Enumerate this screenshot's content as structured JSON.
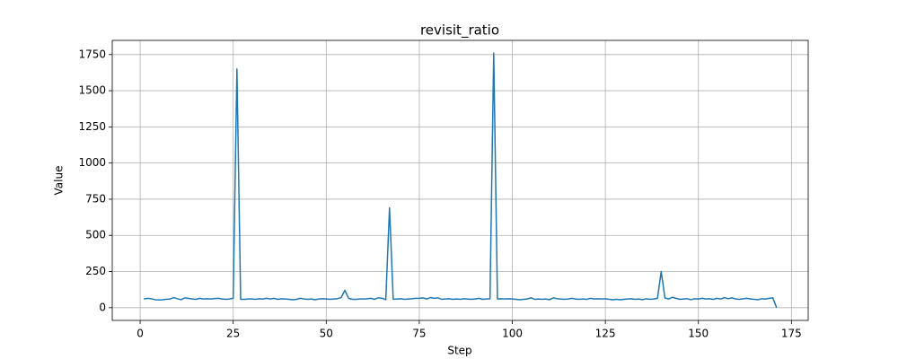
{
  "chart_data": {
    "type": "line",
    "title": "revisit_ratio",
    "xlabel": "Step",
    "ylabel": "Value",
    "x": [
      1,
      2,
      3,
      4,
      5,
      6,
      7,
      8,
      9,
      10,
      11,
      12,
      13,
      14,
      15,
      16,
      17,
      18,
      19,
      20,
      21,
      22,
      23,
      24,
      25,
      26,
      27,
      28,
      29,
      30,
      31,
      32,
      33,
      34,
      35,
      36,
      37,
      38,
      39,
      40,
      41,
      42,
      43,
      44,
      45,
      46,
      47,
      48,
      49,
      50,
      51,
      52,
      53,
      54,
      55,
      56,
      57,
      58,
      59,
      60,
      61,
      62,
      63,
      64,
      65,
      66,
      67,
      68,
      69,
      70,
      71,
      72,
      73,
      74,
      75,
      76,
      77,
      78,
      79,
      80,
      81,
      82,
      83,
      84,
      85,
      86,
      87,
      88,
      89,
      90,
      91,
      92,
      93,
      94,
      95,
      96,
      97,
      98,
      99,
      100,
      101,
      102,
      103,
      104,
      105,
      106,
      107,
      108,
      109,
      110,
      111,
      112,
      113,
      114,
      115,
      116,
      117,
      118,
      119,
      120,
      121,
      122,
      123,
      124,
      125,
      126,
      127,
      128,
      129,
      130,
      131,
      132,
      133,
      134,
      135,
      136,
      137,
      138,
      139,
      140,
      141,
      142,
      143,
      144,
      145,
      146,
      147,
      148,
      149,
      150,
      151,
      152,
      153,
      154,
      155,
      156,
      157,
      158,
      159,
      160,
      161,
      162,
      163,
      164,
      165,
      166,
      167,
      168,
      169,
      170,
      171
    ],
    "series": [
      {
        "color": "#1f77b4",
        "values": [
          60,
          65,
          62,
          55,
          54,
          55,
          58,
          60,
          70,
          62,
          55,
          68,
          64,
          60,
          58,
          65,
          60,
          62,
          60,
          63,
          65,
          60,
          58,
          60,
          65,
          1650,
          58,
          58,
          60,
          60,
          58,
          62,
          60,
          65,
          60,
          65,
          58,
          62,
          60,
          58,
          55,
          58,
          65,
          60,
          58,
          60,
          55,
          60,
          62,
          60,
          58,
          60,
          62,
          70,
          120,
          65,
          58,
          58,
          60,
          60,
          62,
          65,
          58,
          68,
          65,
          55,
          690,
          58,
          60,
          62,
          58,
          60,
          62,
          65,
          65,
          68,
          60,
          70,
          65,
          68,
          58,
          60,
          62,
          58,
          60,
          58,
          62,
          60,
          58,
          60,
          65,
          58,
          60,
          62,
          1760,
          60,
          62,
          60,
          62,
          60,
          58,
          55,
          58,
          60,
          68,
          58,
          60,
          58,
          60,
          55,
          68,
          62,
          60,
          58,
          60,
          65,
          60,
          58,
          60,
          58,
          65,
          60,
          62,
          60,
          62,
          58,
          55,
          58,
          55,
          58,
          60,
          62,
          58,
          60,
          55,
          62,
          58,
          60,
          65,
          250,
          68,
          60,
          72,
          65,
          58,
          60,
          62,
          55,
          62,
          60,
          65,
          60,
          62,
          58,
          65,
          60,
          70,
          62,
          68,
          60,
          58,
          62,
          65,
          60,
          58,
          55,
          62,
          60,
          65,
          68,
          0
        ]
      }
    ],
    "xlim": [
      -7.5,
      179.5
    ],
    "ylim": [
      -88,
      1848
    ],
    "xticks": [
      0,
      25,
      50,
      75,
      100,
      125,
      150,
      175
    ],
    "yticks": [
      0,
      250,
      500,
      750,
      1000,
      1250,
      1500,
      1750
    ],
    "grid": true
  }
}
